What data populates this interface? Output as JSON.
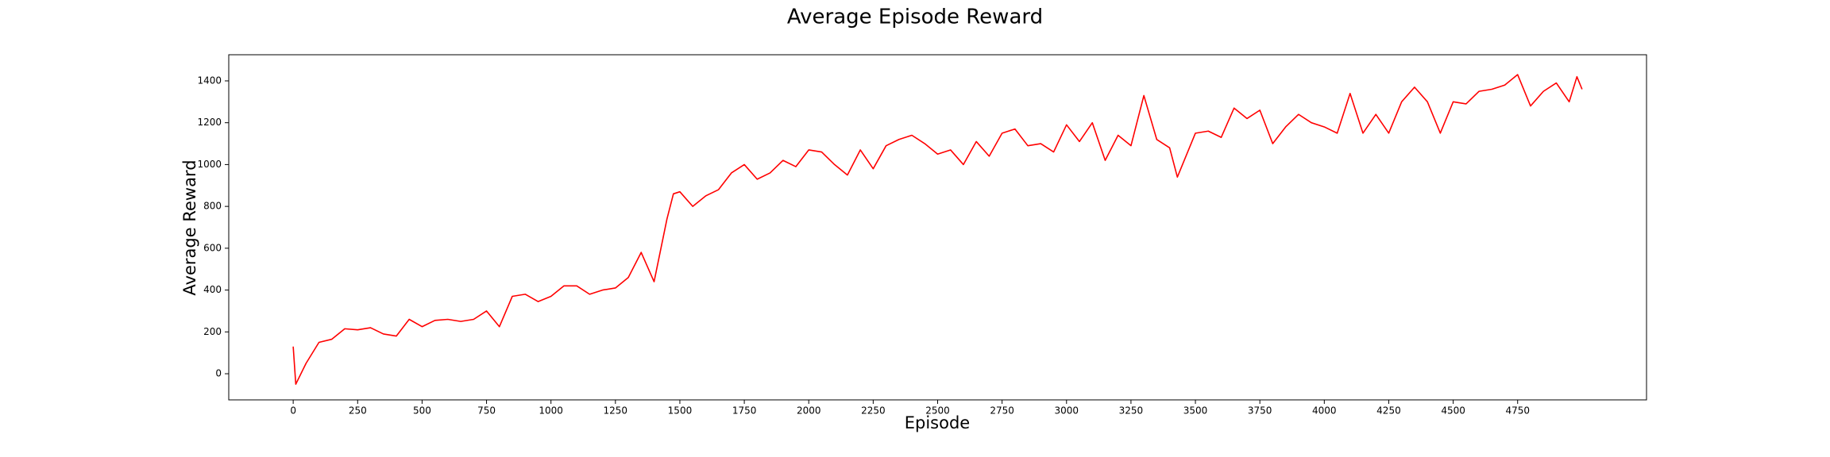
{
  "chart_data": {
    "type": "line",
    "title": "Average Episode Reward",
    "x_label": "Episode",
    "y_label": "Average Reward",
    "x": [
      0,
      10,
      50,
      100,
      150,
      200,
      250,
      300,
      350,
      400,
      450,
      500,
      550,
      600,
      650,
      700,
      750,
      800,
      850,
      900,
      950,
      1000,
      1050,
      1100,
      1150,
      1200,
      1250,
      1300,
      1350,
      1400,
      1450,
      1475,
      1500,
      1550,
      1600,
      1650,
      1700,
      1750,
      1800,
      1850,
      1900,
      1950,
      2000,
      2050,
      2100,
      2150,
      2200,
      2250,
      2300,
      2350,
      2400,
      2450,
      2500,
      2550,
      2600,
      2650,
      2700,
      2750,
      2800,
      2850,
      2900,
      2950,
      3000,
      3050,
      3100,
      3150,
      3200,
      3250,
      3300,
      3350,
      3400,
      3430,
      3500,
      3550,
      3600,
      3650,
      3700,
      3750,
      3800,
      3850,
      3900,
      3950,
      4000,
      4050,
      4100,
      4150,
      4200,
      4250,
      4300,
      4350,
      4400,
      4450,
      4500,
      4550,
      4600,
      4650,
      4700,
      4750,
      4800,
      4850,
      4900,
      4950,
      4980,
      5000
    ],
    "series": [
      {
        "name": "Average Reward",
        "color": "#ff0000",
        "values": [
          130,
          -50,
          50,
          150,
          165,
          215,
          210,
          220,
          190,
          180,
          260,
          225,
          255,
          260,
          250,
          260,
          300,
          225,
          370,
          380,
          345,
          370,
          420,
          420,
          380,
          400,
          410,
          460,
          580,
          440,
          740,
          860,
          870,
          800,
          850,
          880,
          960,
          1000,
          930,
          960,
          1020,
          990,
          1070,
          1060,
          1000,
          950,
          1070,
          980,
          1090,
          1120,
          1140,
          1100,
          1050,
          1070,
          1000,
          1110,
          1040,
          1150,
          1170,
          1090,
          1100,
          1060,
          1190,
          1110,
          1200,
          1020,
          1140,
          1090,
          1330,
          1120,
          1080,
          940,
          1150,
          1160,
          1130,
          1270,
          1220,
          1260,
          1100,
          1180,
          1240,
          1200,
          1180,
          1150,
          1340,
          1150,
          1240,
          1150,
          1300,
          1370,
          1300,
          1150,
          1300,
          1290,
          1350,
          1360,
          1380,
          1430,
          1280,
          1350,
          1390,
          1300,
          1420,
          1360
        ]
      }
    ],
    "xlim": [
      -250,
      5250
    ],
    "ylim": [
      -125,
      1525
    ],
    "xticks": [
      0,
      250,
      500,
      750,
      1000,
      1250,
      1500,
      1750,
      2000,
      2250,
      2500,
      2750,
      3000,
      3250,
      3500,
      3750,
      4000,
      4250,
      4500,
      4750
    ],
    "yticks": [
      0,
      200,
      400,
      600,
      800,
      1000,
      1200,
      1400
    ],
    "grid": false
  }
}
